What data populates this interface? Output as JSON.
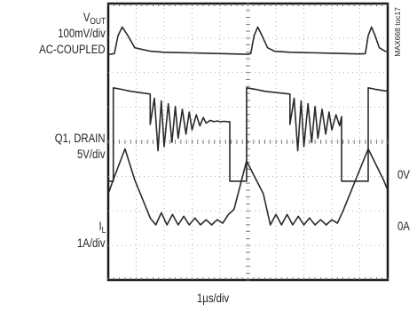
{
  "chart_data": {
    "type": "line",
    "chart_id": "MAX668 toc17",
    "xlabel": "1µs/div",
    "x_divisions": 10,
    "y_divisions": 8,
    "grid": true,
    "channels": [
      {
        "name": "VOUT",
        "name_main": "V",
        "name_sub": "OUT",
        "scale": "100mV/div",
        "coupling": "AC-COUPLED",
        "unit": "mV",
        "x": [
          0,
          0.22,
          0.35,
          0.5,
          0.7,
          0.95,
          1.5,
          2,
          2.5,
          3,
          3.5,
          4,
          4.5,
          5.0,
          5.1,
          5.22,
          5.35,
          5.5,
          5.7,
          5.95,
          6.5,
          7,
          7.5,
          8,
          8.5,
          9.0,
          9.2,
          9.3,
          9.42,
          9.55,
          9.7,
          9.9,
          10
        ],
        "values": [
          -45,
          -42,
          10,
          35,
          10,
          -25,
          -35,
          -38,
          -39,
          -40,
          -41,
          -42,
          -43,
          -44,
          -42,
          10,
          35,
          10,
          -25,
          -35,
          -38,
          -39,
          -40,
          -41,
          -42,
          -43,
          -42,
          10,
          35,
          10,
          -25,
          -35,
          -36
        ]
      },
      {
        "name": "Q1, DRAIN",
        "scale": "5V/div",
        "ground_label": "0V",
        "unit": "V",
        "x": [
          0,
          0.18,
          0.18,
          0.45,
          0.8,
          1.5,
          1.5,
          1.65,
          1.78,
          1.9,
          2.0,
          2.15,
          2.28,
          2.4,
          2.5,
          2.65,
          2.78,
          2.9,
          3.0,
          3.15,
          3.28,
          3.4,
          3.5,
          3.65,
          3.78,
          3.9,
          4.0,
          4.15,
          4.28,
          4.35,
          4.35,
          4.95,
          4.95,
          5.25,
          5.6,
          6.5,
          6.5,
          6.65,
          6.78,
          6.9,
          7.0,
          7.15,
          7.28,
          7.4,
          7.5,
          7.65,
          7.78,
          7.9,
          8.0,
          8.15,
          8.28,
          8.35,
          8.35,
          9.3,
          9.3,
          9.55,
          10
        ],
        "values": [
          -1.0,
          -1.0,
          12.5,
          12.3,
          12.0,
          11.6,
          7.2,
          11.0,
          3.4,
          10.6,
          4.0,
          10.2,
          4.6,
          9.8,
          5.2,
          9.4,
          5.8,
          9.0,
          6.4,
          8.6,
          7.0,
          8.2,
          7.4,
          7.8,
          7.6,
          7.7,
          7.6,
          7.65,
          7.6,
          7.6,
          -1.0,
          -1.0,
          12.5,
          12.3,
          12.0,
          11.6,
          7.2,
          11.0,
          3.4,
          10.6,
          4.0,
          10.2,
          4.6,
          9.8,
          5.2,
          9.4,
          5.8,
          9.0,
          6.4,
          8.6,
          7.0,
          8.35,
          -1.0,
          -1.0,
          12.5,
          12.3,
          12.0
        ]
      },
      {
        "name": "IL",
        "name_main": "I",
        "name_sub": "L",
        "scale": "1A/div",
        "ground_label": "0A",
        "unit": "A",
        "x": [
          0,
          0.2,
          0.6,
          0.95,
          1.5,
          1.7,
          1.9,
          2.1,
          2.3,
          2.5,
          2.7,
          2.9,
          3.1,
          3.3,
          3.5,
          3.7,
          3.9,
          4.1,
          4.3,
          4.5,
          4.95,
          5.55,
          5.8,
          6.0,
          6.2,
          6.4,
          6.6,
          6.8,
          7.0,
          7.2,
          7.4,
          7.6,
          7.8,
          8.0,
          8.2,
          8.4,
          9.3,
          9.85,
          10
        ],
        "values": [
          0.9,
          1.35,
          2.2,
          1.3,
          0.2,
          0.0,
          0.35,
          0.0,
          0.3,
          0.0,
          0.25,
          0.0,
          0.2,
          0.0,
          0.15,
          0.0,
          0.15,
          0.05,
          0.3,
          0.45,
          1.85,
          0.9,
          0.0,
          0.3,
          0.0,
          0.3,
          0.0,
          0.25,
          0.0,
          0.2,
          0.0,
          0.15,
          0.0,
          0.15,
          0.05,
          0.4,
          2.2,
          1.3,
          1.0
        ]
      }
    ]
  }
}
